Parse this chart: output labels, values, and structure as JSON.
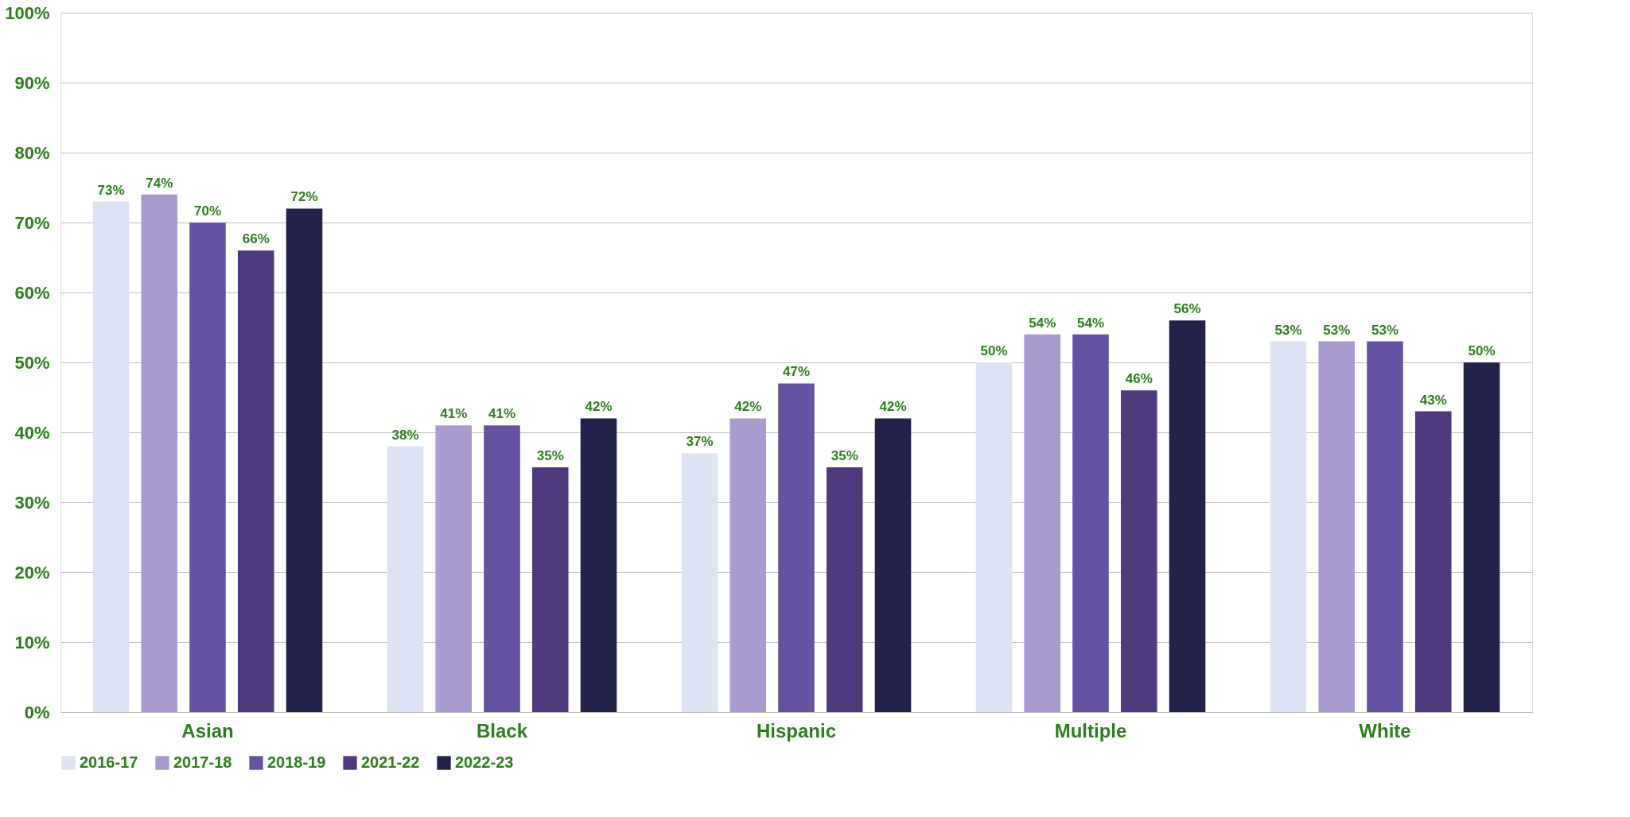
{
  "chart_data": {
    "type": "bar",
    "categories": [
      "Asian",
      "Black",
      "Hispanic",
      "Multiple",
      "White"
    ],
    "series": [
      {
        "name": "2016-17",
        "color": "#dde3f3",
        "values": [
          73,
          38,
          37,
          50,
          53
        ],
        "value_labels": [
          "73%",
          "38%",
          "37%",
          "50%",
          "53%"
        ]
      },
      {
        "name": "2017-18",
        "color": "#a99ad0",
        "values": [
          74,
          41,
          42,
          54,
          53
        ],
        "value_labels": [
          "74%",
          "41%",
          "42%",
          "54%",
          "53%"
        ]
      },
      {
        "name": "2018-19",
        "color": "#6652a3",
        "values": [
          70,
          41,
          47,
          54,
          53
        ],
        "value_labels": [
          "70%",
          "41%",
          "47%",
          "54%",
          "53%"
        ]
      },
      {
        "name": "2021-22",
        "color": "#4e3a7c",
        "values": [
          66,
          35,
          35,
          46,
          43
        ],
        "value_labels": [
          "66%",
          "35%",
          "35%",
          "46%",
          "43%"
        ]
      },
      {
        "name": "2022-23",
        "color": "#22224a",
        "values": [
          72,
          42,
          42,
          56,
          50
        ],
        "value_labels": [
          "72%",
          "42%",
          "42%",
          "56%",
          "50%"
        ]
      }
    ],
    "ylim": [
      0,
      100
    ],
    "yticks": [
      {
        "value": 0,
        "label": "0%"
      },
      {
        "value": 10,
        "label": "10%"
      },
      {
        "value": 20,
        "label": "20%"
      },
      {
        "value": 30,
        "label": "30%"
      },
      {
        "value": 40,
        "label": "40%"
      },
      {
        "value": 50,
        "label": "50%"
      },
      {
        "value": 60,
        "label": "60%"
      },
      {
        "value": 70,
        "label": "70%"
      },
      {
        "value": 80,
        "label": "80%"
      },
      {
        "value": 90,
        "label": "90%"
      },
      {
        "value": 100,
        "label": "100%"
      }
    ],
    "grid": "y",
    "legend": "bottom"
  }
}
